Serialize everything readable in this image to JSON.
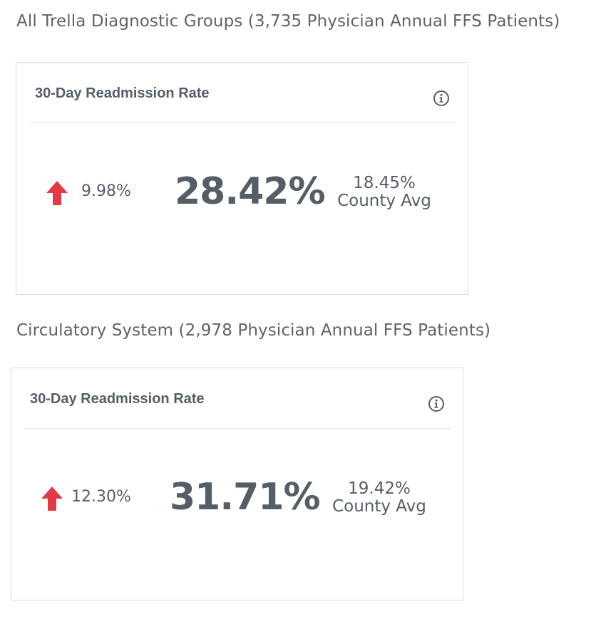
{
  "sections": [
    {
      "title": "All Trella Diagnostic Groups (3,735 Physician Annual FFS Patients)",
      "card": {
        "title": "30-Day Readmission Rate",
        "info_icon": "info-circle-icon",
        "trend_icon": "arrow-up-icon",
        "trend_value": "9.98%",
        "main_value": "28.42%",
        "county_value": "18.45%",
        "county_label": "County Avg"
      }
    },
    {
      "title": "Circulatory System (2,978 Physician Annual FFS Patients)",
      "card": {
        "title": "30-Day Readmission Rate",
        "info_icon": "info-circle-icon",
        "trend_icon": "arrow-up-icon",
        "trend_value": "12.30%",
        "main_value": "31.71%",
        "county_value": "19.42%",
        "county_label": "County Avg"
      }
    }
  ],
  "colors": {
    "text": "#555e66",
    "heading": "#5f6368",
    "trend_up": "#e03a47",
    "border": "#dcdcdc",
    "divider": "#e3e3e3"
  }
}
